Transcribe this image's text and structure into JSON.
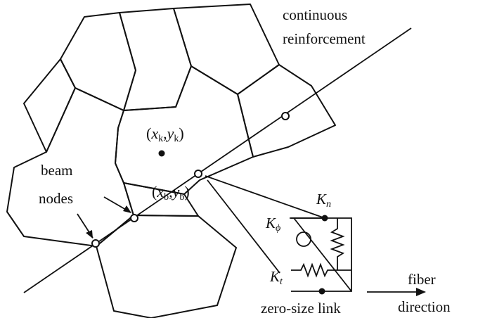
{
  "labels": {
    "continuous": "continuous",
    "reinforcement": "reinforcement",
    "beam": "beam",
    "nodes": "nodes",
    "centroid_x": "x",
    "centroid_x_sub": "k",
    "centroid_y": "y",
    "centroid_y_sub": "k",
    "beam_x": "x",
    "beam_x_sub": "b",
    "beam_y": "y",
    "beam_y_sub": "b",
    "k_n": "K",
    "k_n_sub": "n",
    "k_phi": "K",
    "k_phi_sub": "ϕ",
    "k_t": "K",
    "k_t_sub": "t",
    "zero_size_link": "zero-size link",
    "fiber": "fiber",
    "direction": "direction"
  }
}
